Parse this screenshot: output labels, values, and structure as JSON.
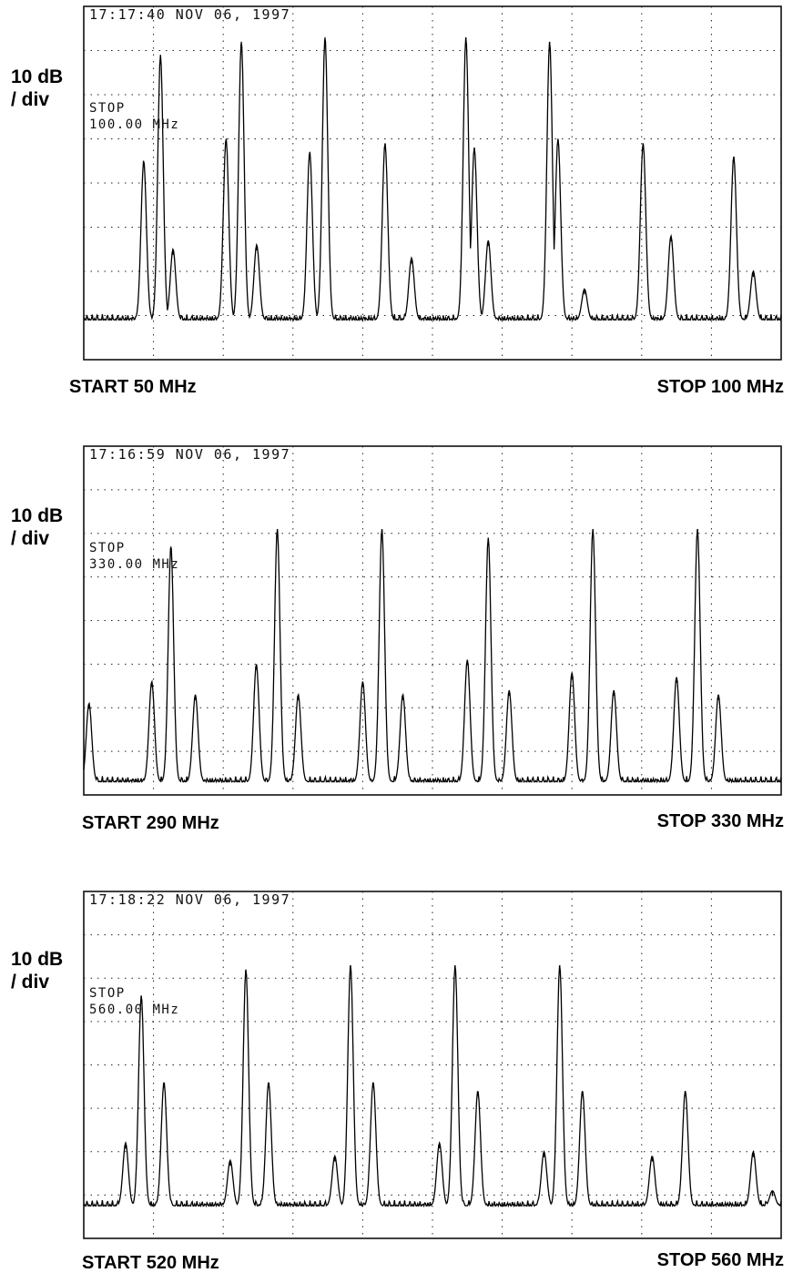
{
  "chart_data": [
    {
      "type": "line",
      "timestamp": "17:17:40 NOV 06, 1997",
      "marker_label": "STOP",
      "marker_value": "100.00 MHz",
      "ylabel_line1": "10 dB",
      "ylabel_line2": "/ div",
      "xlabel_start": "START 50 MHz",
      "xlabel_stop": "STOP 100 MHz",
      "xlim": [
        50,
        100
      ],
      "ylim": [
        0,
        8
      ],
      "grid": true,
      "noise_floor": 0.9,
      "peaks": [
        {
          "x": 54.3,
          "y": 4.5
        },
        {
          "x": 55.5,
          "y": 6.9
        },
        {
          "x": 56.4,
          "y": 2.5
        },
        {
          "x": 60.2,
          "y": 5.0
        },
        {
          "x": 61.3,
          "y": 7.2
        },
        {
          "x": 62.4,
          "y": 2.6
        },
        {
          "x": 66.2,
          "y": 4.7
        },
        {
          "x": 67.3,
          "y": 7.3
        },
        {
          "x": 71.6,
          "y": 4.9
        },
        {
          "x": 73.5,
          "y": 2.3
        },
        {
          "x": 77.4,
          "y": 7.3
        },
        {
          "x": 78.0,
          "y": 4.8
        },
        {
          "x": 79.0,
          "y": 2.7
        },
        {
          "x": 83.4,
          "y": 7.2
        },
        {
          "x": 84.0,
          "y": 5.0
        },
        {
          "x": 85.9,
          "y": 1.6
        },
        {
          "x": 90.1,
          "y": 4.9
        },
        {
          "x": 92.1,
          "y": 2.8
        },
        {
          "x": 96.6,
          "y": 4.6
        },
        {
          "x": 98.0,
          "y": 2.0
        }
      ]
    },
    {
      "type": "line",
      "timestamp": "17:16:59 NOV 06, 1997",
      "marker_label": "STOP",
      "marker_value": "330.00 MHz",
      "ylabel_line1": "10 dB",
      "ylabel_line2": "/ div",
      "xlabel_start": "START 290 MHz",
      "xlabel_stop": "STOP 330 MHz",
      "xlim": [
        290,
        330
      ],
      "ylim": [
        0,
        8
      ],
      "grid": true,
      "noise_floor": 0.3,
      "peaks": [
        {
          "x": 290.3,
          "y": 2.1
        },
        {
          "x": 293.9,
          "y": 2.6
        },
        {
          "x": 295.0,
          "y": 5.7
        },
        {
          "x": 296.4,
          "y": 2.3
        },
        {
          "x": 299.9,
          "y": 3.0
        },
        {
          "x": 301.1,
          "y": 6.1
        },
        {
          "x": 302.3,
          "y": 2.3
        },
        {
          "x": 306.0,
          "y": 2.6
        },
        {
          "x": 307.1,
          "y": 6.1
        },
        {
          "x": 308.3,
          "y": 2.3
        },
        {
          "x": 312.0,
          "y": 3.1
        },
        {
          "x": 313.2,
          "y": 5.9
        },
        {
          "x": 314.4,
          "y": 2.4
        },
        {
          "x": 318.0,
          "y": 2.8
        },
        {
          "x": 319.2,
          "y": 6.1
        },
        {
          "x": 320.4,
          "y": 2.4
        },
        {
          "x": 324.0,
          "y": 2.7
        },
        {
          "x": 325.2,
          "y": 6.1
        },
        {
          "x": 326.4,
          "y": 2.3
        }
      ]
    },
    {
      "type": "line",
      "timestamp": "17:18:22 NOV 06, 1997",
      "marker_label": "STOP",
      "marker_value": "560.00 MHz",
      "ylabel_line1": "10 dB",
      "ylabel_line2": "/ div",
      "xlabel_start": "START 520 MHz",
      "xlabel_stop": "STOP 560 MHz",
      "xlim": [
        520,
        560
      ],
      "ylim": [
        0,
        8
      ],
      "grid": true,
      "noise_floor": 0.75,
      "peaks": [
        {
          "x": 522.4,
          "y": 2.2
        },
        {
          "x": 523.3,
          "y": 5.6
        },
        {
          "x": 524.6,
          "y": 3.6
        },
        {
          "x": 528.4,
          "y": 1.8
        },
        {
          "x": 529.3,
          "y": 6.2
        },
        {
          "x": 530.6,
          "y": 3.6
        },
        {
          "x": 534.4,
          "y": 1.9
        },
        {
          "x": 535.3,
          "y": 6.3
        },
        {
          "x": 536.6,
          "y": 3.6
        },
        {
          "x": 540.4,
          "y": 2.2
        },
        {
          "x": 541.3,
          "y": 6.3
        },
        {
          "x": 542.6,
          "y": 3.4
        },
        {
          "x": 546.4,
          "y": 2.0
        },
        {
          "x": 547.3,
          "y": 6.3
        },
        {
          "x": 548.6,
          "y": 3.4
        },
        {
          "x": 552.6,
          "y": 1.9
        },
        {
          "x": 554.5,
          "y": 3.4
        },
        {
          "x": 558.4,
          "y": 2.0
        },
        {
          "x": 559.5,
          "y": 1.1
        }
      ]
    }
  ]
}
